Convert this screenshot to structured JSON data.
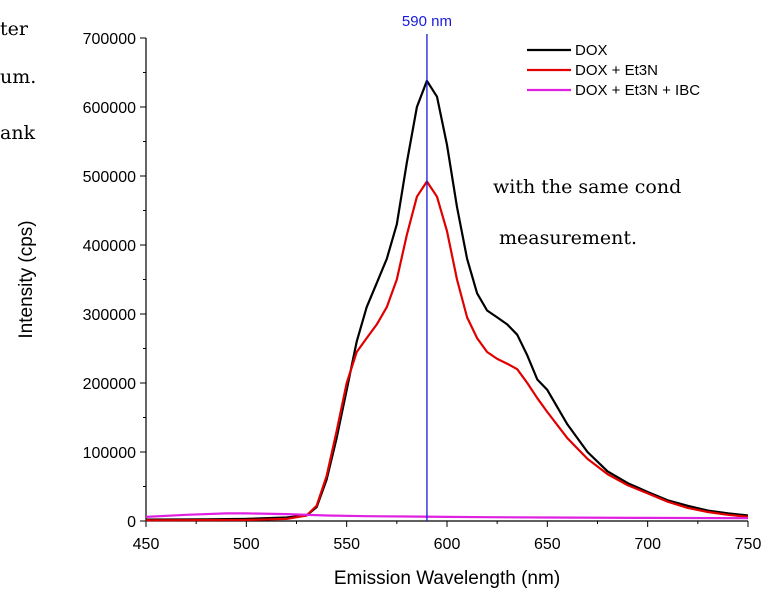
{
  "background_text": {
    "line1": "ter",
    "line2": "um.",
    "line3": "ank",
    "line4": "with  the  same  cond",
    "line5": "measurement."
  },
  "colors": {
    "dox": "#000000",
    "dox_et3n": "#e00000",
    "dox_et3n_ibc": "#e020e0",
    "marker": "#1a1adb"
  },
  "chart_data": {
    "type": "line",
    "title": "",
    "xlabel": "Emission Wavelength (nm)",
    "ylabel": "Intensity (cps)",
    "xlim": [
      450,
      750
    ],
    "ylim": [
      0,
      700000
    ],
    "x_ticks": [
      450,
      500,
      550,
      600,
      650,
      700,
      750
    ],
    "y_ticks": [
      0,
      100000,
      200000,
      300000,
      400000,
      500000,
      600000,
      700000
    ],
    "grid": false,
    "legend_position": "top-right",
    "annotation": {
      "label": "590 nm",
      "x": 590
    },
    "series": [
      {
        "name": "DOX",
        "color": "#000000",
        "points": [
          [
            450,
            2000
          ],
          [
            480,
            2500
          ],
          [
            500,
            3000
          ],
          [
            520,
            5000
          ],
          [
            530,
            8000
          ],
          [
            535,
            20000
          ],
          [
            540,
            60000
          ],
          [
            545,
            120000
          ],
          [
            550,
            190000
          ],
          [
            555,
            260000
          ],
          [
            560,
            310000
          ],
          [
            565,
            345000
          ],
          [
            570,
            380000
          ],
          [
            575,
            430000
          ],
          [
            580,
            520000
          ],
          [
            585,
            600000
          ],
          [
            590,
            638000
          ],
          [
            595,
            615000
          ],
          [
            600,
            545000
          ],
          [
            605,
            455000
          ],
          [
            610,
            380000
          ],
          [
            615,
            330000
          ],
          [
            620,
            305000
          ],
          [
            625,
            295000
          ],
          [
            630,
            285000
          ],
          [
            635,
            270000
          ],
          [
            640,
            240000
          ],
          [
            645,
            205000
          ],
          [
            650,
            190000
          ],
          [
            660,
            140000
          ],
          [
            670,
            100000
          ],
          [
            680,
            72000
          ],
          [
            690,
            55000
          ],
          [
            700,
            42000
          ],
          [
            710,
            30000
          ],
          [
            720,
            22000
          ],
          [
            730,
            15000
          ],
          [
            740,
            11000
          ],
          [
            750,
            8000
          ]
        ]
      },
      {
        "name": "DOX + Et3N",
        "color": "#e00000",
        "points": [
          [
            450,
            1000
          ],
          [
            500,
            1500
          ],
          [
            520,
            3000
          ],
          [
            530,
            8000
          ],
          [
            535,
            22000
          ],
          [
            540,
            65000
          ],
          [
            545,
            130000
          ],
          [
            550,
            200000
          ],
          [
            555,
            245000
          ],
          [
            560,
            265000
          ],
          [
            565,
            285000
          ],
          [
            570,
            310000
          ],
          [
            575,
            350000
          ],
          [
            580,
            415000
          ],
          [
            585,
            470000
          ],
          [
            590,
            492000
          ],
          [
            595,
            470000
          ],
          [
            600,
            420000
          ],
          [
            605,
            350000
          ],
          [
            610,
            295000
          ],
          [
            615,
            265000
          ],
          [
            620,
            245000
          ],
          [
            625,
            235000
          ],
          [
            630,
            228000
          ],
          [
            635,
            220000
          ],
          [
            640,
            200000
          ],
          [
            645,
            178000
          ],
          [
            650,
            158000
          ],
          [
            660,
            120000
          ],
          [
            670,
            90000
          ],
          [
            680,
            68000
          ],
          [
            690,
            52000
          ],
          [
            700,
            40000
          ],
          [
            710,
            28000
          ],
          [
            720,
            19000
          ],
          [
            730,
            13000
          ],
          [
            740,
            9000
          ],
          [
            750,
            6000
          ]
        ]
      },
      {
        "name": "DOX + Et3N + IBC",
        "color": "#e020e0",
        "points": [
          [
            450,
            6000
          ],
          [
            470,
            9000
          ],
          [
            490,
            11000
          ],
          [
            500,
            11000
          ],
          [
            520,
            10000
          ],
          [
            540,
            8000
          ],
          [
            560,
            7000
          ],
          [
            580,
            6500
          ],
          [
            600,
            6000
          ],
          [
            620,
            5500
          ],
          [
            650,
            5000
          ],
          [
            700,
            4500
          ],
          [
            750,
            4000
          ]
        ]
      }
    ]
  }
}
